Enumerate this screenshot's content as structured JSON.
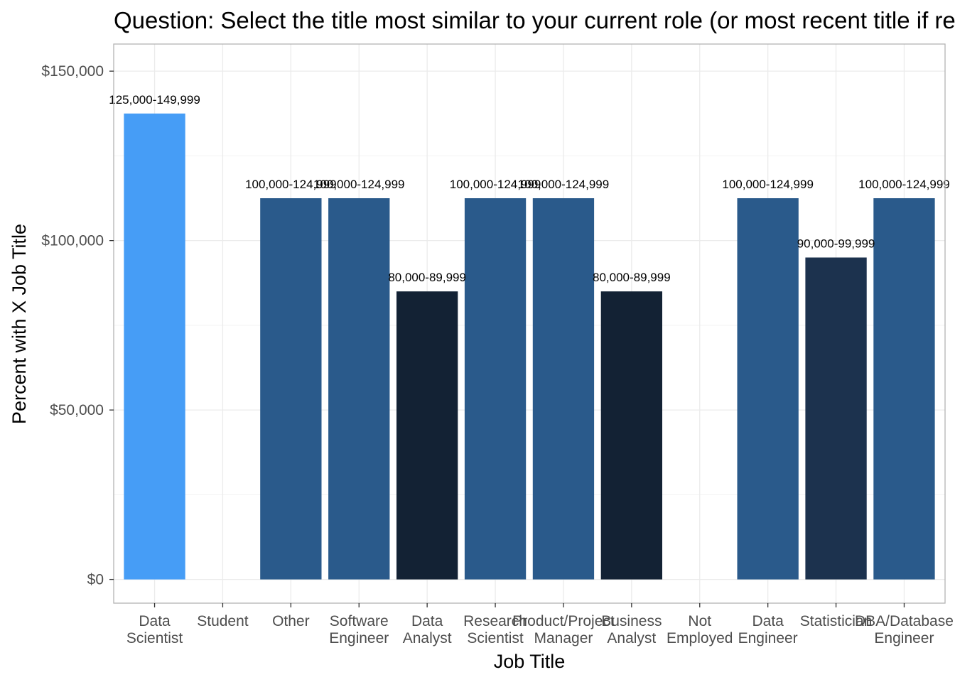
{
  "chart_data": {
    "type": "bar",
    "title": "Question: Select the title most similar to your current role (or most recent title if retired):",
    "xlabel": "Job Title",
    "ylabel": "Percent with X Job Title",
    "ylim": [
      -7000,
      158000
    ],
    "y_ticks": [
      {
        "value": 0,
        "label": "$0"
      },
      {
        "value": 50000,
        "label": "$50,000"
      },
      {
        "value": 100000,
        "label": "$100,000"
      },
      {
        "value": 150000,
        "label": "$150,000"
      }
    ],
    "grid": true,
    "categories": [
      [
        "Data",
        "Scientist"
      ],
      [
        "Student"
      ],
      [
        "Other"
      ],
      [
        "Software",
        "Engineer"
      ],
      [
        "Data",
        "Analyst"
      ],
      [
        "Research",
        "Scientist"
      ],
      [
        "Product/Project",
        "Manager"
      ],
      [
        "Business",
        "Analyst"
      ],
      [
        "Not",
        "Employed"
      ],
      [
        "Data",
        "Engineer"
      ],
      [
        "Statistician"
      ],
      [
        "DBA/Database",
        "Engineer"
      ]
    ],
    "values": [
      137500,
      null,
      112500,
      112500,
      85000,
      112500,
      112500,
      85000,
      null,
      112500,
      95000,
      112500
    ],
    "data_labels": [
      "125,000-149,999",
      "",
      "100,000-124,999",
      "100,000-124,999",
      "80,000-89,999",
      "100,000-124,999",
      "100,000-124,999",
      "80,000-89,999",
      "",
      "100,000-124,999",
      "90,000-99,999",
      "100,000-124,999"
    ],
    "colors": [
      "#469df6",
      "",
      "#2a5a8b",
      "#2a5a8b",
      "#132234",
      "#2a5a8b",
      "#2a5a8b",
      "#132234",
      "",
      "#2a5a8b",
      "#1c324e",
      "#2a5a8b"
    ]
  }
}
